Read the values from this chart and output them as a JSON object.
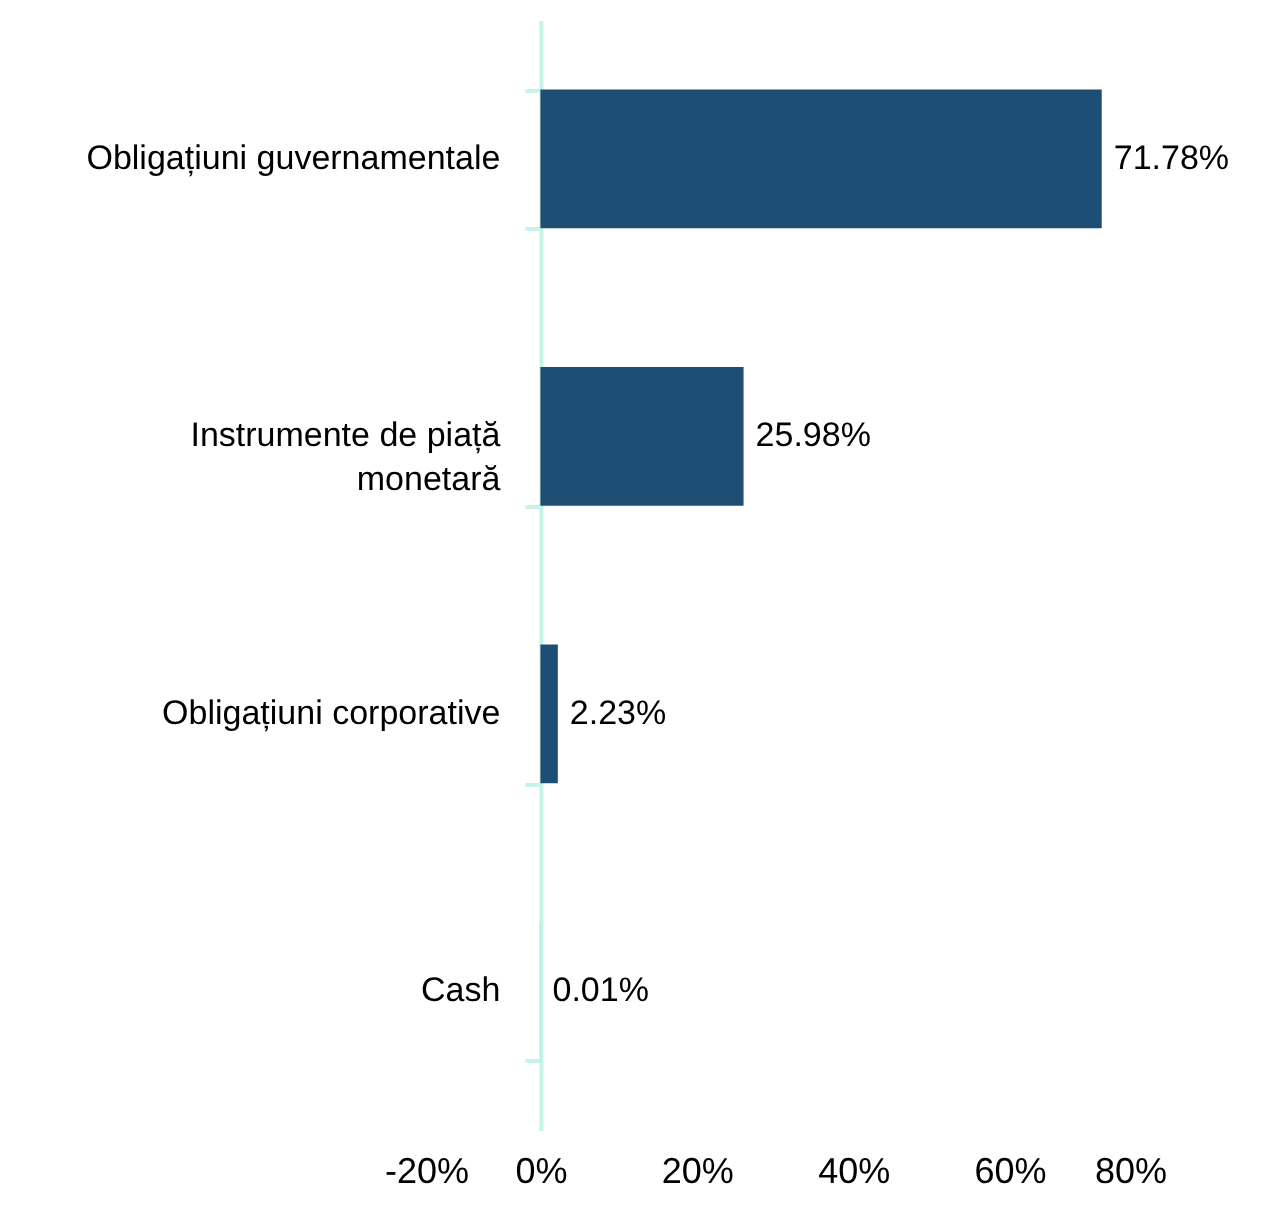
{
  "chart_data": {
    "type": "bar",
    "orientation": "horizontal",
    "categories": [
      "Obligațiuni guvernamentale",
      "Instrumente de piață monetară",
      "Obligațiuni corporative",
      "Cash"
    ],
    "values": [
      71.78,
      25.98,
      2.23,
      0.01
    ],
    "color": "#1f4e74",
    "value_labels": [
      "71.78%",
      "25.98%",
      "2.23%",
      "0.01%"
    ],
    "xlim": [
      -20,
      80
    ],
    "xticks": [
      {
        "value": -20,
        "label": "-20%"
      },
      {
        "value": 0,
        "label": "0%"
      },
      {
        "value": 20,
        "label": "20%"
      },
      {
        "value": 40,
        "label": "40%"
      },
      {
        "value": 60,
        "label": "60%"
      },
      {
        "value": 80,
        "label": "80%"
      }
    ],
    "grid": false
  }
}
